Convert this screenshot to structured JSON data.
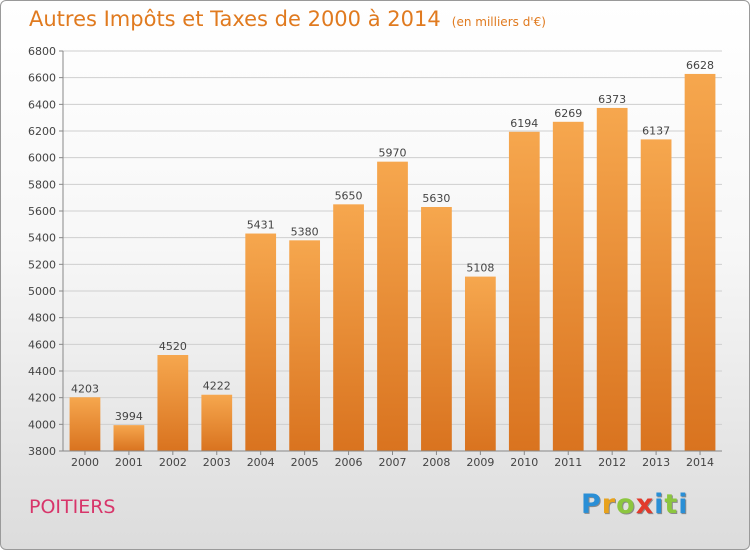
{
  "title": "Autres Impôts et Taxes de 2000 à 2014",
  "unit": "(en milliers d'€)",
  "city": "POITIERS",
  "brand": {
    "letters": [
      "P",
      "r",
      "o",
      "x",
      "i",
      "t",
      "i"
    ],
    "colors": [
      "#2a8fd6",
      "#e8a21c",
      "#8cc63f",
      "#e23a2c",
      "#2a8fd6",
      "#8cc63f",
      "#2a8fd6"
    ]
  },
  "colors": {
    "bar_top": "#f6a74e",
    "bar_bottom": "#d9731f",
    "grid": "#cfcfcf",
    "text": "#444444"
  },
  "chart_data": {
    "type": "bar",
    "categories": [
      "2000",
      "2001",
      "2002",
      "2003",
      "2004",
      "2005",
      "2006",
      "2007",
      "2008",
      "2009",
      "2010",
      "2011",
      "2012",
      "2013",
      "2014"
    ],
    "values": [
      4203,
      3994,
      4520,
      4222,
      5431,
      5380,
      5650,
      5970,
      5630,
      5108,
      6194,
      6269,
      6373,
      6137,
      6628
    ],
    "y_ticks": [
      3800,
      4000,
      4200,
      4400,
      4600,
      4800,
      5000,
      5200,
      5400,
      5600,
      5800,
      6000,
      6200,
      6400,
      6600,
      6800
    ],
    "ylim": [
      3800,
      6800
    ],
    "grid": true,
    "legend": "none"
  }
}
